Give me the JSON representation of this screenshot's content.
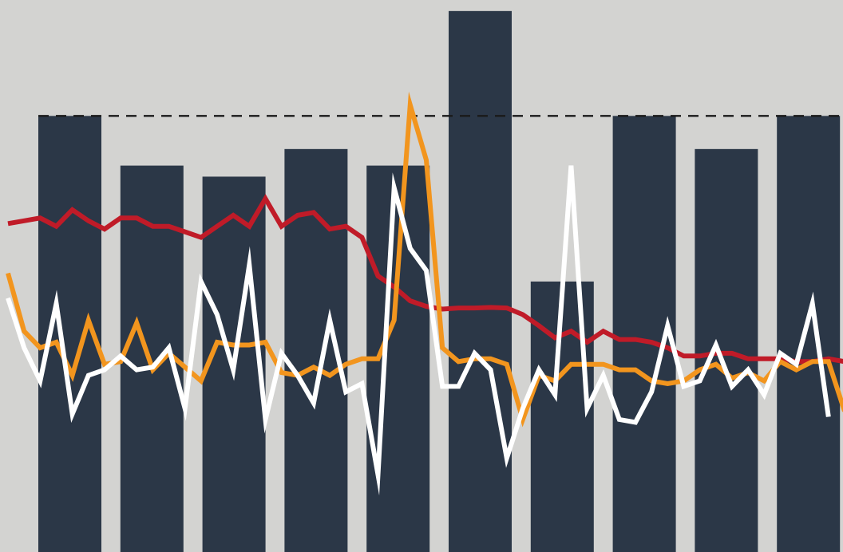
{
  "chart_data": {
    "type": "bar",
    "title": "",
    "xlabel": "",
    "ylabel": "",
    "ylim": [
      0,
      100
    ],
    "grid": false,
    "colors": {
      "background": "#d3d3d1",
      "bars": "#2b3747",
      "reference_line": "#1a1a1a"
    },
    "bars": {
      "values": [
        79,
        70,
        68,
        73,
        70,
        98,
        49,
        79,
        73,
        79
      ]
    },
    "reference_line": {
      "value": 79,
      "style": "dashed"
    },
    "lines": {
      "x": [
        0,
        1,
        2,
        3,
        4,
        5,
        6,
        7,
        8,
        9,
        10,
        11,
        12,
        13,
        14,
        15,
        16,
        17,
        18,
        19,
        20,
        21,
        22,
        23,
        24,
        25,
        26,
        27,
        28,
        29,
        30,
        31,
        32,
        33,
        34,
        35,
        36,
        37,
        38,
        39,
        40,
        41,
        42,
        43,
        44,
        45,
        46,
        47,
        48,
        49,
        50,
        51,
        52
      ],
      "series": [
        {
          "color": "#c01b28",
          "values": [
            59.5,
            60,
            60.5,
            59,
            62,
            60,
            58.5,
            60.5,
            60.5,
            59,
            59,
            58,
            57,
            59,
            61,
            59,
            64,
            59,
            61,
            61.5,
            58.5,
            59,
            57,
            50,
            48,
            45.5,
            44.5,
            44,
            44.2,
            44.2,
            44.3,
            44.2,
            43,
            41,
            38.8,
            40,
            38,
            40,
            38.5,
            38.5,
            38,
            37,
            35.5,
            35.5,
            36,
            36,
            35,
            35,
            35,
            34.5,
            34.5,
            35,
            34.5
          ]
        },
        {
          "color": "#f2951e",
          "values": [
            50.5,
            40,
            37,
            38,
            32,
            42,
            34,
            34.5,
            41.5,
            33,
            36,
            33.5,
            31,
            38,
            37.5,
            37.5,
            38,
            32.5,
            32,
            33.5,
            32,
            34,
            35,
            35,
            42,
            81,
            71,
            37,
            34.5,
            35,
            35,
            34,
            24,
            32,
            31,
            34,
            34,
            34,
            33,
            33,
            31,
            30.5,
            31,
            33,
            34,
            31.5,
            32.5,
            31,
            34.5,
            33,
            34.5,
            34.5,
            25.5
          ]
        },
        {
          "color": "#ffffff",
          "values": [
            46,
            37,
            31,
            45,
            25,
            32,
            33,
            35.5,
            33,
            33.5,
            37,
            26,
            49,
            43,
            33,
            52,
            24,
            36,
            32,
            27,
            42,
            29,
            30.5,
            14,
            66,
            55,
            51,
            30,
            30,
            36,
            33,
            17,
            26,
            33,
            28.5,
            70,
            26,
            32,
            24,
            23.5,
            29,
            41,
            30,
            31,
            37.5,
            30,
            33,
            28.5,
            36,
            34,
            45,
            24.5,
            null
          ]
        }
      ]
    }
  }
}
